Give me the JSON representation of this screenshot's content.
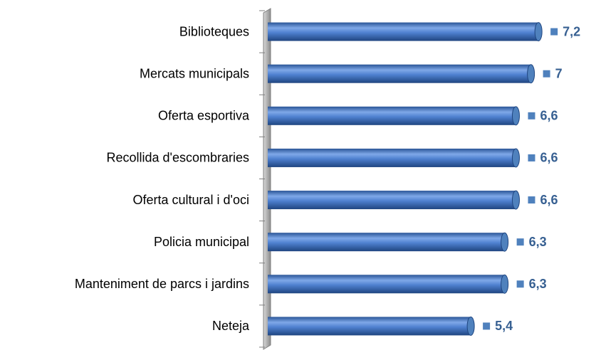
{
  "chart_data": {
    "type": "bar",
    "orientation": "horizontal",
    "categories": [
      "Biblioteques",
      "Mercats municipals",
      "Oferta esportiva",
      "Recollida d'escombraries",
      "Oferta cultural i d'oci",
      "Policia municipal",
      "Manteniment de parcs i jardins",
      "Neteja"
    ],
    "values": [
      7.2,
      7,
      6.6,
      6.6,
      6.6,
      6.3,
      6.3,
      5.4
    ],
    "value_labels": [
      "7,2",
      "7",
      "6,6",
      "6,6",
      "6,6",
      "6,3",
      "6,3",
      "5,4"
    ],
    "color": "#4f81bd",
    "xlim": [
      0,
      8
    ]
  }
}
